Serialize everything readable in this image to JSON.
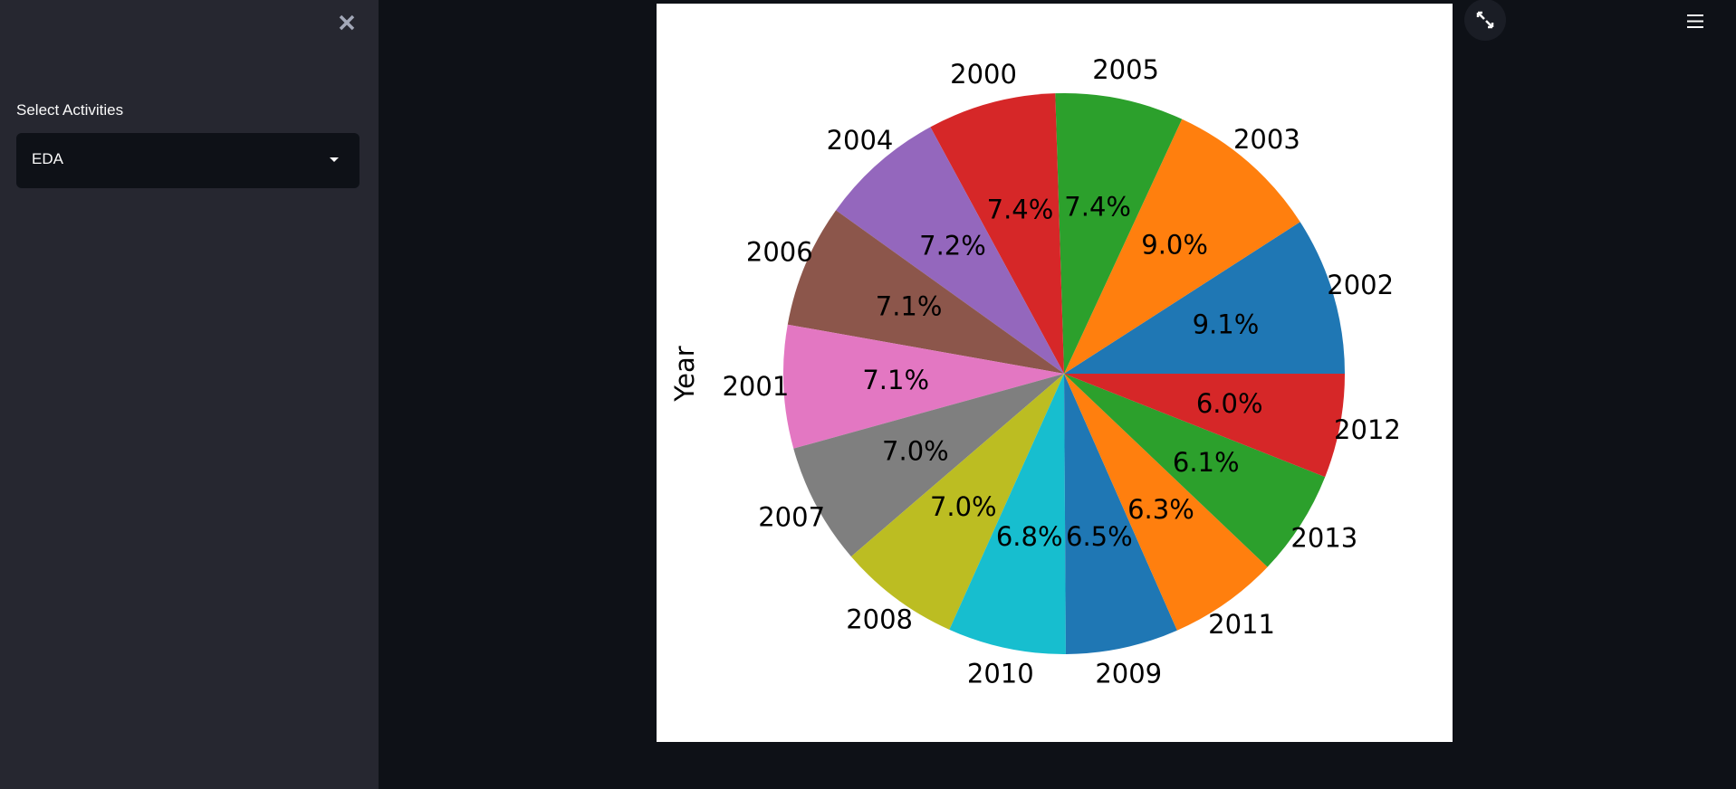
{
  "sidebar": {
    "select_label": "Select Activities",
    "select_value": "EDA"
  },
  "chart_data": {
    "type": "pie",
    "ylabel": "Year",
    "categories": [
      "2002",
      "2003",
      "2005",
      "2000",
      "2004",
      "2006",
      "2001",
      "2007",
      "2008",
      "2010",
      "2009",
      "2011",
      "2013",
      "2012"
    ],
    "values": [
      9.1,
      9.0,
      7.4,
      7.4,
      7.2,
      7.1,
      7.1,
      7.0,
      7.0,
      6.8,
      6.5,
      6.3,
      6.1,
      6.0
    ],
    "value_labels": [
      "9.1%",
      "9.0%",
      "7.4%",
      "7.4%",
      "7.2%",
      "7.1%",
      "7.1%",
      "7.0%",
      "7.0%",
      "6.8%",
      "6.5%",
      "6.3%",
      "6.1%",
      "6.0%"
    ],
    "colors": [
      "#1f77b4",
      "#ff7f0e",
      "#2ca02c",
      "#d62728",
      "#9467bd",
      "#8c564b",
      "#e377c2",
      "#7f7f7f",
      "#bcbd22",
      "#17becf",
      "#1f77b4",
      "#ff7f0e",
      "#2ca02c",
      "#d62728"
    ],
    "start_angle": 0
  }
}
